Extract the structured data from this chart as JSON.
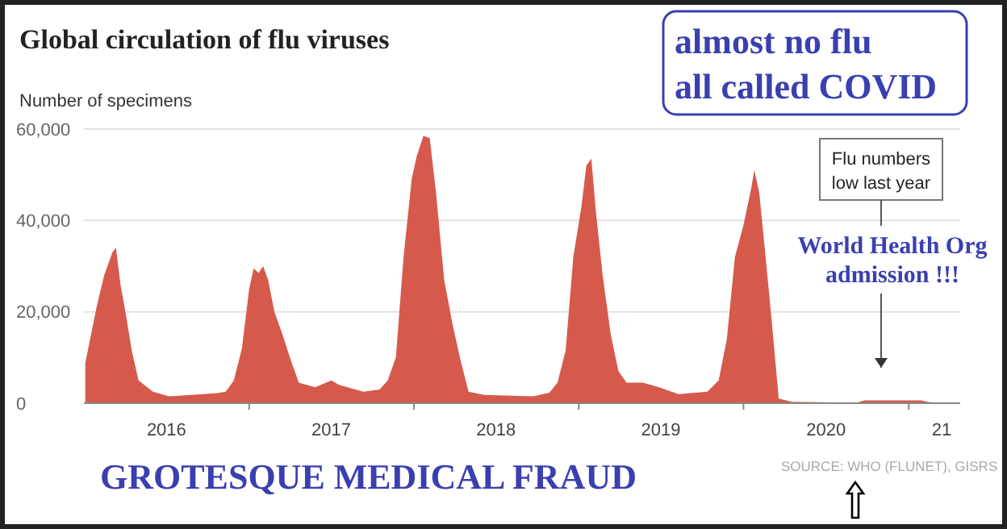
{
  "chart_data": {
    "type": "area",
    "title": "Global circulation of flu viruses",
    "ylabel": "Number of specimens",
    "color": "#d65a4c",
    "x": [
      "2016-01-04",
      "2016-01-29",
      "2016-02-15",
      "2016-03-04",
      "2016-03-12",
      "2016-03-22",
      "2016-04-02",
      "2016-04-16",
      "2016-05-01",
      "2016-06-02",
      "2016-07-08",
      "2016-10-23",
      "2016-11-10",
      "2016-11-28",
      "2016-12-16",
      "2017-01-01",
      "2017-01-11",
      "2017-01-22",
      "2017-02-01",
      "2017-02-12",
      "2017-02-26",
      "2017-03-16",
      "2017-04-03",
      "2017-04-21",
      "2017-05-27",
      "2017-07-02",
      "2017-07-19",
      "2017-09-11",
      "2017-10-17",
      "2017-11-04",
      "2017-11-22",
      "2017-12-09",
      "2017-12-27",
      "2018-01-07",
      "2018-01-22",
      "2018-02-05",
      "2018-02-19",
      "2018-03-09",
      "2018-03-27",
      "2018-04-14",
      "2018-05-02",
      "2018-06-06",
      "2018-09-22",
      "2018-10-28",
      "2018-11-15",
      "2018-12-03",
      "2018-12-20",
      "2019-01-07",
      "2019-01-18",
      "2019-01-29",
      "2019-02-08",
      "2019-02-23",
      "2019-03-13",
      "2019-03-30",
      "2019-04-17",
      "2019-05-23",
      "2019-06-28",
      "2019-08-10",
      "2019-10-13",
      "2019-11-07",
      "2019-11-25",
      "2019-12-13",
      "2020-01-01",
      "2020-01-18",
      "2020-01-25",
      "2020-02-05",
      "2020-02-19",
      "2020-03-04",
      "2020-03-19",
      "2020-04-17",
      "2020-09-07",
      "2020-09-25",
      "2021-01-29",
      "2021-02-15",
      "2021-04-10"
    ],
    "values": [
      8800,
      21000,
      28000,
      33000,
      34000,
      26000,
      20000,
      11500,
      5000,
      2500,
      1500,
      2200,
      2500,
      5000,
      12000,
      25000,
      29500,
      28500,
      30000,
      27000,
      20000,
      15000,
      9500,
      4500,
      3500,
      5000,
      4000,
      2500,
      3000,
      5000,
      10000,
      32000,
      49000,
      54000,
      58500,
      58000,
      46000,
      27000,
      17500,
      9500,
      2500,
      1800,
      1500,
      2300,
      4500,
      11500,
      32000,
      43000,
      52000,
      53500,
      42000,
      28000,
      15000,
      7000,
      4500,
      4500,
      3500,
      2000,
      2500,
      5000,
      14000,
      32000,
      39000,
      47000,
      51000,
      46000,
      32000,
      17500,
      1000,
      300,
      100,
      600,
      600,
      200,
      0
    ],
    "xlim": [
      "2016-01-01",
      "2021-04-25"
    ],
    "xticks": [
      {
        "value": "2016-07-02",
        "label": "2016"
      },
      {
        "value": "2017-01-01",
        "label": null
      },
      {
        "value": "2017-07-02",
        "label": "2017"
      },
      {
        "value": "2018-01-01",
        "label": null
      },
      {
        "value": "2018-07-02",
        "label": "2018"
      },
      {
        "value": "2019-01-01",
        "label": null
      },
      {
        "value": "2019-07-02",
        "label": "2019"
      },
      {
        "value": "2020-01-01",
        "label": null
      },
      {
        "value": "2020-07-02",
        "label": "2020"
      },
      {
        "value": "2021-01-01",
        "label": null
      },
      {
        "value": "2021-03-15",
        "label": "21"
      }
    ],
    "ylim": [
      0,
      60000
    ],
    "yticks": [
      {
        "value": 0,
        "label": "0"
      },
      {
        "value": 20000,
        "label": "20,000"
      },
      {
        "value": 40000,
        "label": "40,000"
      },
      {
        "value": 60000,
        "label": "60,000"
      }
    ],
    "grid": "y",
    "annotations": [
      "almost no flu\nall called COVID",
      "Flu numbers\nlow last year",
      "World Health Org\nadmission !!!",
      "GROTESQUE MEDICAL FRAUD",
      "SOURCE: WHO (FLUNET), GISRS"
    ]
  }
}
